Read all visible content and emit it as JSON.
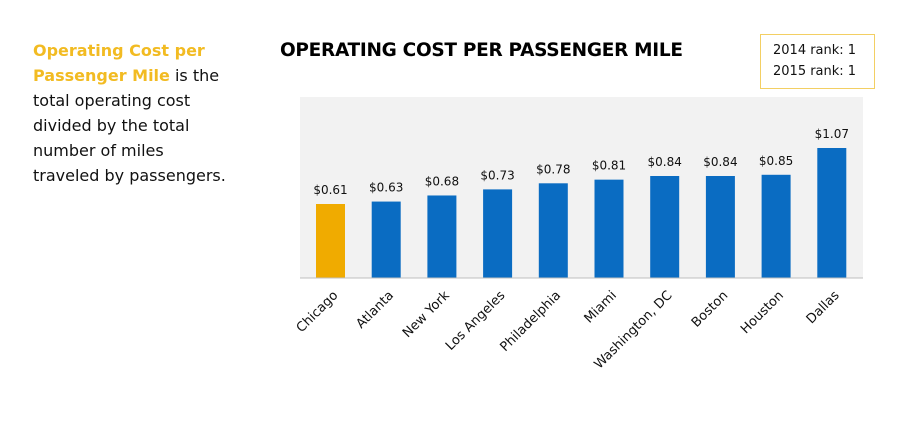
{
  "description": {
    "highlight": "Operating Cost per Passenger Mile",
    "rest": " is the total operating cost divided by the total number of miles traveled by passengers."
  },
  "rank_box": {
    "line1": "2014 rank:  1",
    "line2": "2015 rank:  1"
  },
  "colors": {
    "highlight": "#f0ab00",
    "bar": "#0a6cc2",
    "plot_bg": "#f2f2f2",
    "accent_text": "#f2bb22"
  },
  "chart_data": {
    "type": "bar",
    "title": "OPERATING COST PER PASSENGER MILE",
    "xlabel": "",
    "ylabel": "",
    "categories": [
      "Chicago",
      "Atlanta",
      "New York",
      "Los Angeles",
      "Philadelphia",
      "Miami",
      "Washington, DC",
      "Boston",
      "Houston",
      "Dallas"
    ],
    "values": [
      0.61,
      0.63,
      0.68,
      0.73,
      0.78,
      0.81,
      0.84,
      0.84,
      0.85,
      1.07
    ],
    "data_labels": [
      "$0.61",
      "$0.63",
      "$0.68",
      "$0.73",
      "$0.78",
      "$0.81",
      "$0.84",
      "$0.84",
      "$0.85",
      "$1.07"
    ],
    "highlighted_category": "Chicago",
    "ylim": [
      0,
      1.2
    ],
    "grid": false,
    "legend": "none"
  }
}
